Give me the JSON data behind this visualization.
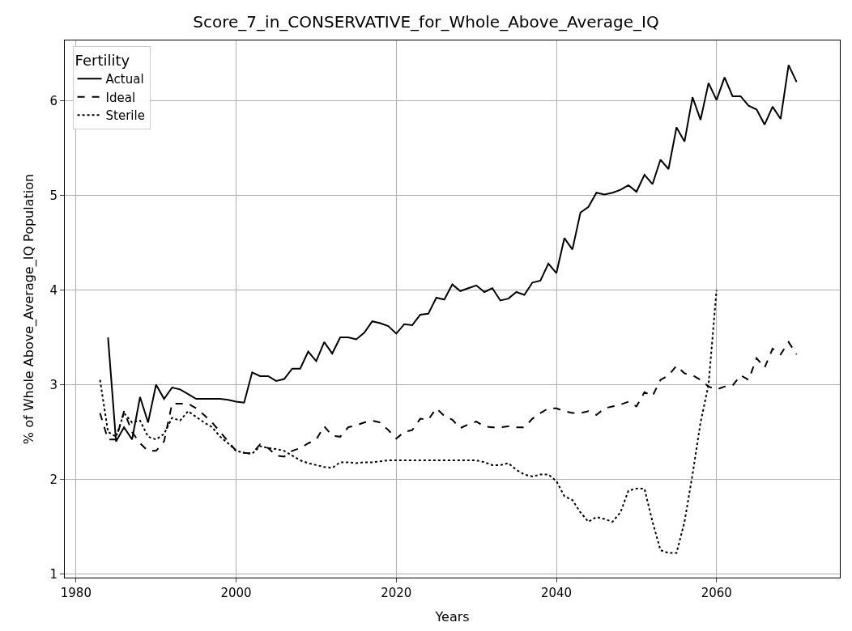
{
  "chart_data": {
    "type": "line",
    "title": "Score_7_in_CONSERVATIVE_for_Whole_Above_Average_IQ",
    "xlabel": "Years",
    "ylabel": "% of Whole Above_Average_IQ Population",
    "legend_title": "Fertility",
    "legend": "top left",
    "grid": true,
    "xlim": [
      1978.6,
      2075.4
    ],
    "xticks": [
      1980,
      2000,
      2020,
      2040,
      2060
    ],
    "ylim": [
      0.96,
      6.64
    ],
    "yticks": [
      1,
      2,
      3,
      4,
      5,
      6
    ],
    "series": [
      {
        "name": "Actual",
        "color": "#000000",
        "line_style": "solid",
        "x": [
          1984,
          1985,
          1986,
          1987,
          1988,
          1989,
          1990,
          1991,
          1992,
          1993,
          1994,
          1995,
          1996,
          1997,
          1998,
          1999,
          2000,
          2001,
          2002,
          2003,
          2004,
          2005,
          2006,
          2007,
          2008,
          2009,
          2010,
          2011,
          2012,
          2013,
          2014,
          2015,
          2016,
          2017,
          2018,
          2019,
          2020,
          2021,
          2022,
          2023,
          2024,
          2025,
          2026,
          2027,
          2028,
          2029,
          2030,
          2031,
          2032,
          2033,
          2034,
          2035,
          2036,
          2037,
          2038,
          2039,
          2040,
          2041,
          2042,
          2043,
          2044,
          2045,
          2046,
          2047,
          2048,
          2049,
          2050,
          2051,
          2052,
          2053,
          2054,
          2055,
          2056,
          2057,
          2058,
          2059,
          2060,
          2061,
          2062,
          2063,
          2064,
          2065,
          2066,
          2067,
          2068,
          2069,
          2070
        ],
        "values": [
          3.5,
          2.4,
          2.55,
          2.42,
          2.87,
          2.6,
          3.0,
          2.85,
          2.97,
          2.95,
          2.9,
          2.85,
          2.85,
          2.85,
          2.85,
          2.84,
          2.82,
          2.81,
          3.13,
          3.09,
          3.09,
          3.04,
          3.06,
          3.17,
          3.17,
          3.35,
          3.25,
          3.45,
          3.33,
          3.5,
          3.5,
          3.48,
          3.55,
          3.67,
          3.65,
          3.62,
          3.54,
          3.64,
          3.63,
          3.74,
          3.75,
          3.92,
          3.9,
          4.06,
          3.99,
          4.02,
          4.05,
          3.98,
          4.02,
          3.89,
          3.91,
          3.98,
          3.95,
          4.08,
          4.1,
          4.28,
          4.18,
          4.55,
          4.43,
          4.82,
          4.88,
          5.03,
          5.01,
          5.03,
          5.06,
          5.11,
          5.04,
          5.22,
          5.12,
          5.38,
          5.28,
          5.72,
          5.57,
          6.04,
          5.8,
          6.19,
          6.01,
          6.25,
          6.05,
          6.05,
          5.95,
          5.91,
          5.75,
          5.94,
          5.81,
          6.38,
          6.2
        ]
      },
      {
        "name": "Ideal",
        "color": "#000000",
        "line_style": "dashed",
        "x": [
          1983,
          1984,
          1985,
          1986,
          1987,
          1988,
          1989,
          1990,
          1991,
          1992,
          1993,
          1994,
          1995,
          1996,
          1997,
          1998,
          1999,
          2000,
          2001,
          2002,
          2003,
          2004,
          2005,
          2006,
          2007,
          2008,
          2009,
          2010,
          2011,
          2012,
          2013,
          2014,
          2015,
          2016,
          2017,
          2018,
          2019,
          2020,
          2021,
          2022,
          2023,
          2024,
          2025,
          2026,
          2027,
          2028,
          2029,
          2030,
          2031,
          2032,
          2033,
          2034,
          2035,
          2036,
          2037,
          2038,
          2039,
          2040,
          2041,
          2042,
          2043,
          2044,
          2045,
          2046,
          2047,
          2048,
          2049,
          2050,
          2051,
          2052,
          2053,
          2054,
          2055,
          2056,
          2057,
          2058,
          2059,
          2060,
          2061,
          2062,
          2063,
          2064,
          2065,
          2066,
          2067,
          2068,
          2069,
          2070
        ],
        "values": [
          2.7,
          2.42,
          2.42,
          2.72,
          2.5,
          2.38,
          2.3,
          2.3,
          2.4,
          2.8,
          2.8,
          2.8,
          2.75,
          2.68,
          2.6,
          2.5,
          2.4,
          2.3,
          2.28,
          2.27,
          2.37,
          2.33,
          2.25,
          2.24,
          2.3,
          2.33,
          2.38,
          2.42,
          2.56,
          2.46,
          2.45,
          2.55,
          2.57,
          2.6,
          2.62,
          2.6,
          2.52,
          2.43,
          2.5,
          2.52,
          2.64,
          2.63,
          2.75,
          2.67,
          2.63,
          2.54,
          2.58,
          2.61,
          2.56,
          2.55,
          2.55,
          2.56,
          2.55,
          2.55,
          2.64,
          2.7,
          2.75,
          2.75,
          2.72,
          2.7,
          2.7,
          2.72,
          2.68,
          2.75,
          2.77,
          2.79,
          2.82,
          2.77,
          2.92,
          2.88,
          3.05,
          3.1,
          3.2,
          3.12,
          3.1,
          3.05,
          2.98,
          2.95,
          2.98,
          2.99,
          3.1,
          3.05,
          3.28,
          3.18,
          3.38,
          3.32,
          3.45,
          3.32
        ]
      },
      {
        "name": "Sterile",
        "color": "#000000",
        "line_style": "dotted",
        "x": [
          1983,
          1984,
          1985,
          1986,
          1987,
          1988,
          1989,
          1990,
          1991,
          1992,
          1993,
          1994,
          1995,
          1996,
          1997,
          1998,
          1999,
          2000,
          2001,
          2002,
          2003,
          2004,
          2005,
          2006,
          2007,
          2008,
          2009,
          2010,
          2011,
          2012,
          2013,
          2014,
          2015,
          2016,
          2017,
          2018,
          2019,
          2020,
          2021,
          2022,
          2023,
          2024,
          2025,
          2026,
          2027,
          2028,
          2029,
          2030,
          2031,
          2032,
          2033,
          2034,
          2035,
          2036,
          2037,
          2038,
          2039,
          2040,
          2041,
          2042,
          2043,
          2044,
          2045,
          2046,
          2047,
          2048,
          2049,
          2050,
          2051,
          2052,
          2053,
          2054,
          2055,
          2056,
          2057,
          2058,
          2059,
          2060
        ],
        "values": [
          3.05,
          2.5,
          2.45,
          2.7,
          2.6,
          2.62,
          2.45,
          2.42,
          2.48,
          2.65,
          2.62,
          2.72,
          2.66,
          2.6,
          2.55,
          2.45,
          2.38,
          2.3,
          2.28,
          2.27,
          2.35,
          2.33,
          2.32,
          2.3,
          2.25,
          2.2,
          2.17,
          2.15,
          2.13,
          2.12,
          2.18,
          2.18,
          2.17,
          2.18,
          2.18,
          2.19,
          2.2,
          2.2,
          2.2,
          2.2,
          2.2,
          2.2,
          2.2,
          2.2,
          2.2,
          2.2,
          2.2,
          2.2,
          2.18,
          2.15,
          2.15,
          2.17,
          2.1,
          2.05,
          2.03,
          2.05,
          2.05,
          1.98,
          1.82,
          1.78,
          1.65,
          1.55,
          1.6,
          1.58,
          1.55,
          1.65,
          1.88,
          1.9,
          1.9,
          1.55,
          1.25,
          1.22,
          1.22,
          1.55,
          2.05,
          2.6,
          3.0,
          4.0
        ]
      }
    ]
  }
}
